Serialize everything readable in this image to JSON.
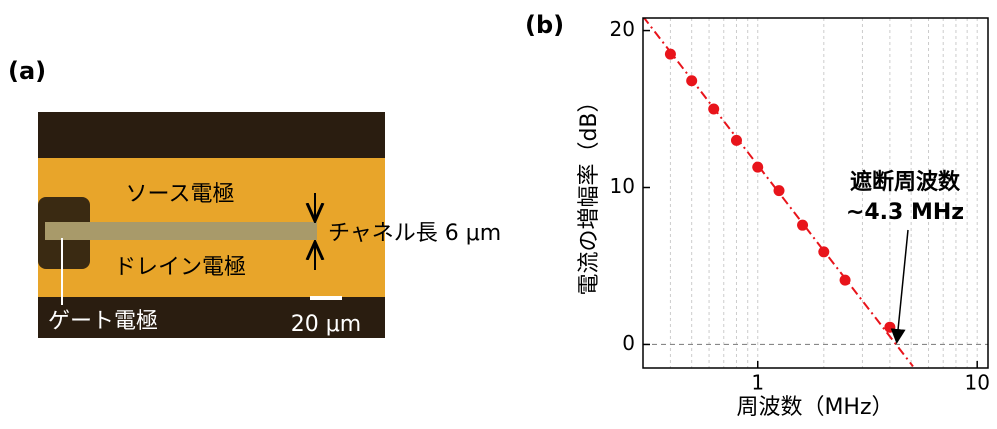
{
  "panel_a": {
    "label": "(a)",
    "source_label": "ソース電極",
    "drain_label": "ドレイン電極",
    "gate_label": "ゲート電極",
    "channel_label": "チャネル長 6 μm",
    "scale_label": "20 μm"
  },
  "chart_data": {
    "type": "scatter",
    "panel_label": "(b)",
    "x_label": "周波数（MHz）",
    "y_label": "電流の増幅率（dB）",
    "x_log": true,
    "xlim": [
      0.3,
      11.2
    ],
    "ylim": [
      -1.5,
      20.8
    ],
    "xticks": [
      1,
      10
    ],
    "yticks": [
      0,
      10,
      20
    ],
    "x_grid": [
      0.4,
      0.5,
      0.6,
      0.7,
      0.8,
      0.9,
      1,
      2,
      3,
      4,
      5,
      6,
      7,
      8,
      9,
      10
    ],
    "hline": 0,
    "x": [
      0.4,
      0.5,
      0.63,
      0.8,
      1.0,
      1.25,
      1.6,
      2.0,
      2.5,
      4.0
    ],
    "values": [
      18.5,
      16.8,
      15.0,
      13.0,
      11.3,
      9.8,
      7.6,
      5.9,
      4.1,
      1.1
    ],
    "color": "#e8141b",
    "fit": {
      "x": [
        0.3,
        5.1
      ],
      "values": [
        20.9,
        -1.4
      ],
      "color": "#e8141b"
    },
    "annotation": {
      "lines": [
        "遮断周波数",
        "~4.3 MHz"
      ],
      "x": 4.3,
      "y": 0
    }
  }
}
